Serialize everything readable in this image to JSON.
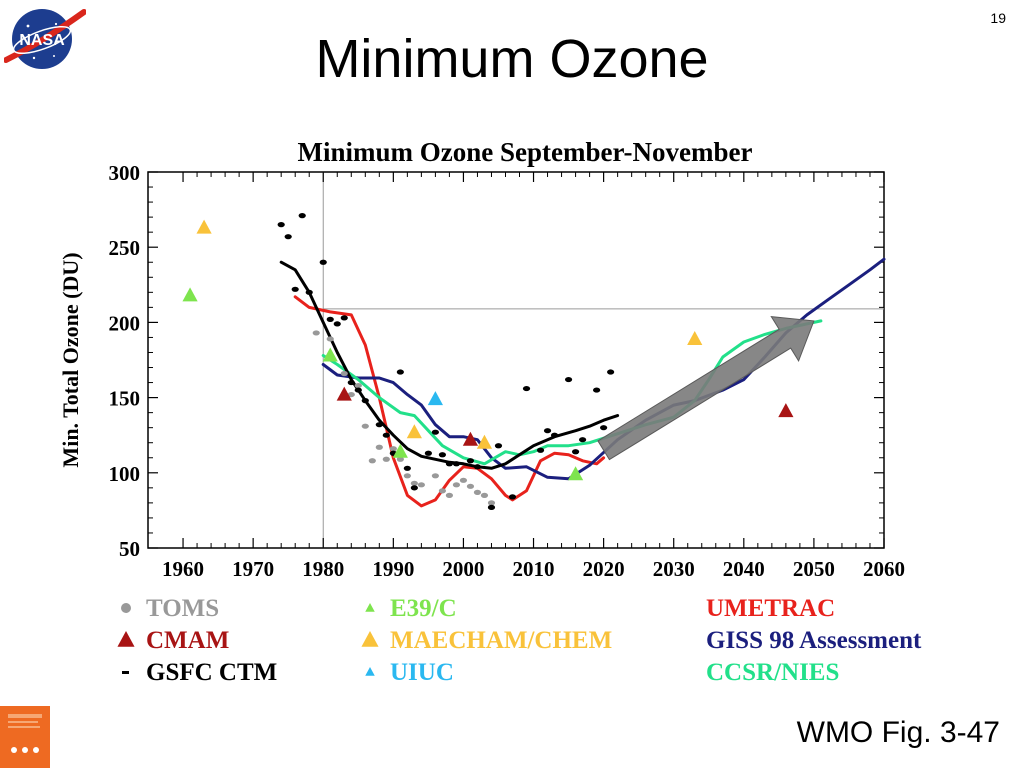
{
  "slide": {
    "number": "19",
    "title": "Minimum Ozone",
    "caption": "WMO Fig. 3-47",
    "logo_text": "NASA"
  },
  "chart_data": {
    "type": "line",
    "title": "Minimum Ozone September-November",
    "ylabel": "Min. Total Ozone (DU)",
    "xlabel": "",
    "xlim": [
      1955,
      2060
    ],
    "ylim": [
      50,
      300
    ],
    "xticks": [
      1960,
      1970,
      1980,
      1990,
      2000,
      2010,
      2020,
      2030,
      2040,
      2050,
      2060
    ],
    "yticks": [
      50,
      100,
      150,
      200,
      250,
      300
    ],
    "grid": false,
    "reference_lines": {
      "vertical_x": 1980,
      "horizontal_y": 209
    },
    "series": [
      {
        "name": "UMETRAC",
        "kind": "line",
        "color": "#e8221c",
        "points": [
          [
            1976,
            217
          ],
          [
            1978,
            210
          ],
          [
            1981,
            207
          ],
          [
            1984,
            205
          ],
          [
            1986,
            185
          ],
          [
            1988,
            150
          ],
          [
            1990,
            110
          ],
          [
            1992,
            85
          ],
          [
            1994,
            78
          ],
          [
            1996,
            82
          ],
          [
            1998,
            95
          ],
          [
            2000,
            104
          ],
          [
            2002,
            103
          ],
          [
            2004,
            96
          ],
          [
            2006,
            85
          ],
          [
            2007,
            82
          ],
          [
            2009,
            88
          ],
          [
            2011,
            108
          ],
          [
            2013,
            113
          ],
          [
            2015,
            112
          ],
          [
            2017,
            108
          ],
          [
            2019,
            106
          ],
          [
            2020,
            110
          ]
        ]
      },
      {
        "name": "GISS 98 Assessment",
        "kind": "line",
        "color": "#1b1f7e",
        "points": [
          [
            1980,
            172
          ],
          [
            1982,
            165
          ],
          [
            1985,
            163
          ],
          [
            1988,
            163
          ],
          [
            1990,
            160
          ],
          [
            1992,
            152
          ],
          [
            1994,
            145
          ],
          [
            1996,
            132
          ],
          [
            1998,
            124
          ],
          [
            2000,
            124
          ],
          [
            2002,
            122
          ],
          [
            2004,
            110
          ],
          [
            2006,
            103
          ],
          [
            2009,
            104
          ],
          [
            2012,
            97
          ],
          [
            2015,
            96
          ],
          [
            2018,
            105
          ],
          [
            2022,
            122
          ],
          [
            2026,
            135
          ],
          [
            2030,
            145
          ],
          [
            2033,
            148
          ],
          [
            2037,
            155
          ],
          [
            2040,
            162
          ],
          [
            2043,
            177
          ],
          [
            2046,
            193
          ],
          [
            2049,
            205
          ],
          [
            2052,
            215
          ],
          [
            2055,
            225
          ],
          [
            2058,
            235
          ],
          [
            2060,
            242
          ]
        ]
      },
      {
        "name": "CCSR/NIES",
        "kind": "line",
        "color": "#22e08a",
        "points": [
          [
            1980,
            178
          ],
          [
            1982,
            172
          ],
          [
            1985,
            162
          ],
          [
            1988,
            150
          ],
          [
            1991,
            140
          ],
          [
            1993,
            138
          ],
          [
            1995,
            128
          ],
          [
            1997,
            118
          ],
          [
            2000,
            110
          ],
          [
            2003,
            106
          ],
          [
            2006,
            114
          ],
          [
            2008,
            112
          ],
          [
            2010,
            114
          ],
          [
            2012,
            118
          ],
          [
            2015,
            118
          ],
          [
            2018,
            120
          ],
          [
            2022,
            126
          ],
          [
            2026,
            132
          ],
          [
            2030,
            137
          ],
          [
            2033,
            148
          ],
          [
            2035,
            162
          ],
          [
            2037,
            177
          ],
          [
            2040,
            187
          ],
          [
            2043,
            192
          ],
          [
            2046,
            196
          ],
          [
            2048,
            198
          ],
          [
            2051,
            201
          ]
        ]
      },
      {
        "name": "GSFC CTM",
        "kind": "line",
        "color": "#000000",
        "points": [
          [
            1974,
            240
          ],
          [
            1976,
            235
          ],
          [
            1978,
            220
          ],
          [
            1980,
            200
          ],
          [
            1982,
            180
          ],
          [
            1984,
            162
          ],
          [
            1986,
            148
          ],
          [
            1988,
            135
          ],
          [
            1990,
            125
          ],
          [
            1992,
            116
          ],
          [
            1994,
            111
          ],
          [
            1996,
            109
          ],
          [
            1998,
            107
          ],
          [
            2000,
            106
          ],
          [
            2002,
            104
          ],
          [
            2004,
            103
          ],
          [
            2006,
            106
          ],
          [
            2008,
            112
          ],
          [
            2010,
            118
          ],
          [
            2013,
            124
          ],
          [
            2016,
            128
          ],
          [
            2018,
            131
          ],
          [
            2020,
            135
          ],
          [
            2022,
            138
          ]
        ]
      },
      {
        "name": "TOMS",
        "kind": "points",
        "marker": "dot",
        "color": "#999999",
        "points": [
          [
            1979,
            193
          ],
          [
            1981,
            189
          ],
          [
            1983,
            166
          ],
          [
            1984,
            152
          ],
          [
            1985,
            158
          ],
          [
            1986,
            131
          ],
          [
            1987,
            108
          ],
          [
            1988,
            117
          ],
          [
            1989,
            109
          ],
          [
            1990,
            116
          ],
          [
            1991,
            109
          ],
          [
            1992,
            98
          ],
          [
            1993,
            93
          ],
          [
            1994,
            92
          ],
          [
            1996,
            98
          ],
          [
            1997,
            88
          ],
          [
            1998,
            85
          ],
          [
            1999,
            92
          ],
          [
            2000,
            95
          ],
          [
            2001,
            91
          ],
          [
            2002,
            87
          ],
          [
            2003,
            85
          ],
          [
            2004,
            80
          ]
        ]
      },
      {
        "name": "GSFC CTM",
        "kind": "points",
        "marker": "dot",
        "color": "#000000",
        "points": [
          [
            1974,
            265
          ],
          [
            1975,
            257
          ],
          [
            1977,
            271
          ],
          [
            1976,
            222
          ],
          [
            1978,
            220
          ],
          [
            1980,
            240
          ],
          [
            1981,
            202
          ],
          [
            1982,
            199
          ],
          [
            1983,
            203
          ],
          [
            1984,
            160
          ],
          [
            1985,
            155
          ],
          [
            1986,
            148
          ],
          [
            1988,
            132
          ],
          [
            1989,
            125
          ],
          [
            1990,
            113
          ],
          [
            1991,
            167
          ],
          [
            1992,
            103
          ],
          [
            1993,
            90
          ],
          [
            1995,
            113
          ],
          [
            1996,
            127
          ],
          [
            1997,
            112
          ],
          [
            1998,
            106
          ],
          [
            1999,
            106
          ],
          [
            2001,
            108
          ],
          [
            2002,
            104
          ],
          [
            2004,
            77
          ],
          [
            2005,
            118
          ],
          [
            2007,
            84
          ],
          [
            2009,
            156
          ],
          [
            2011,
            115
          ],
          [
            2012,
            128
          ],
          [
            2013,
            125
          ],
          [
            2015,
            162
          ],
          [
            2016,
            114
          ],
          [
            2017,
            122
          ],
          [
            2019,
            155
          ],
          [
            2020,
            130
          ],
          [
            2021,
            167
          ]
        ]
      },
      {
        "name": "E39/C",
        "kind": "points",
        "marker": "triangle",
        "color": "#7ee44e",
        "points": [
          [
            1961,
            218
          ],
          [
            1981,
            178
          ],
          [
            1991,
            114
          ],
          [
            2016,
            99
          ]
        ]
      },
      {
        "name": "MAECHAM/CHEM",
        "kind": "points",
        "marker": "triangle",
        "color": "#f9c23a",
        "points": [
          [
            1963,
            263
          ],
          [
            1993,
            127
          ],
          [
            2003,
            120
          ],
          [
            2033,
            189
          ]
        ]
      },
      {
        "name": "UIUC",
        "kind": "points",
        "marker": "triangle",
        "color": "#2ab8f0",
        "points": [
          [
            1996,
            149
          ]
        ]
      },
      {
        "name": "CMAM",
        "kind": "points",
        "marker": "triangle",
        "color": "#a81414",
        "points": [
          [
            1983,
            152
          ],
          [
            2001,
            122
          ],
          [
            2046,
            141
          ]
        ]
      }
    ],
    "arrow": {
      "from": [
        2020,
        115
      ],
      "to": [
        2050,
        201
      ],
      "color": "#7a7a7a"
    },
    "legend": {
      "placement": "bottom",
      "columns": [
        [
          {
            "label": "TOMS",
            "marker": "dot",
            "color": "#999999",
            "text_color": "#999999"
          },
          {
            "label": "CMAM",
            "marker": "triangle",
            "color": "#a81414",
            "text_color": "#a81414"
          },
          {
            "label": "GSFC CTM",
            "marker": "dot",
            "color": "#000000",
            "text_color": "#000000"
          }
        ],
        [
          {
            "label": "E39/C",
            "marker": "triangle",
            "color": "#7ee44e",
            "text_color": "#7ee44e"
          },
          {
            "label": "MAECHAM/CHEM",
            "marker": "triangle",
            "color": "#f9c23a",
            "text_color": "#f9c23a"
          },
          {
            "label": "UIUC",
            "marker": "triangle",
            "color": "#2ab8f0",
            "text_color": "#2ab8f0"
          }
        ],
        [
          {
            "label": "UMETRAC",
            "marker": "none",
            "color": "#e8221c",
            "text_color": "#e8221c"
          },
          {
            "label": "GISS 98 Assessment",
            "marker": "none",
            "color": "#1b1f7e",
            "text_color": "#1b1f7e"
          },
          {
            "label": "CCSR/NIES",
            "marker": "none",
            "color": "#22e08a",
            "text_color": "#22e08a"
          }
        ]
      ]
    }
  }
}
